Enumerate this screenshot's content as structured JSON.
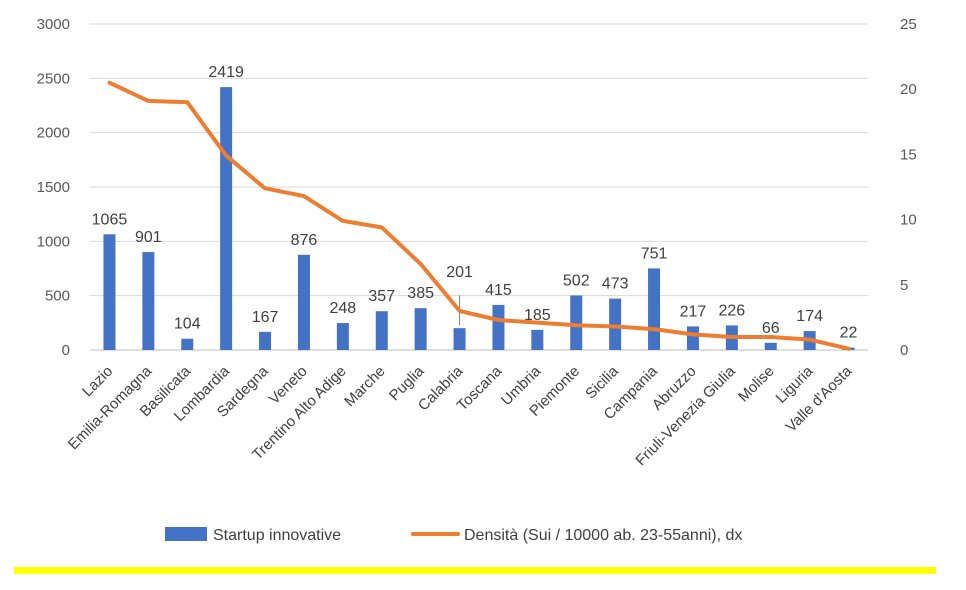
{
  "chart_data": {
    "type": "bar",
    "categories": [
      "Lazio",
      "Emilia-Romagna",
      "Basilicata",
      "Lombardia",
      "Sardegna",
      "Veneto",
      "Trentino Alto Adige",
      "Marche",
      "Puglia",
      "Calabria",
      "Toscana",
      "Umbria",
      "Piemonte",
      "Sicilia",
      "Campania",
      "Abruzzo",
      "Friuli-Venezia Giulia",
      "Molise",
      "Liguria",
      "Valle d'Aosta"
    ],
    "series": [
      {
        "name": "Startup innovative",
        "type": "bar",
        "axis": "left",
        "color": "#4472C4",
        "values": [
          1065,
          901,
          104,
          2419,
          167,
          876,
          248,
          357,
          385,
          201,
          415,
          185,
          502,
          473,
          751,
          217,
          226,
          66,
          174,
          22
        ],
        "data_labels": [
          "1065",
          "901",
          "104",
          "2419",
          "167",
          "876",
          "248",
          "357",
          "385",
          "201",
          "415",
          "185",
          "502",
          "473",
          "751",
          "217",
          "226",
          "66",
          "174",
          "22"
        ]
      },
      {
        "name": "Densità (Sui / 10000 ab. 23-55anni), dx",
        "type": "line",
        "axis": "right",
        "color": "#ED7D31",
        "values": [
          20.5,
          19.1,
          19.0,
          14.9,
          12.4,
          11.8,
          9.9,
          9.4,
          6.6,
          3.0,
          2.3,
          2.1,
          1.9,
          1.8,
          1.6,
          1.2,
          1.0,
          1.0,
          0.8,
          0.1
        ]
      }
    ],
    "y_left": {
      "min": 0,
      "max": 3000,
      "ticks": [
        0,
        500,
        1000,
        1500,
        2000,
        2500,
        3000
      ]
    },
    "y_right": {
      "min": 0,
      "max": 25,
      "ticks": [
        0,
        5,
        10,
        15,
        20,
        25
      ]
    },
    "grid": true,
    "legend_position": "bottom",
    "footer_rule_color": "#FFFF00"
  }
}
